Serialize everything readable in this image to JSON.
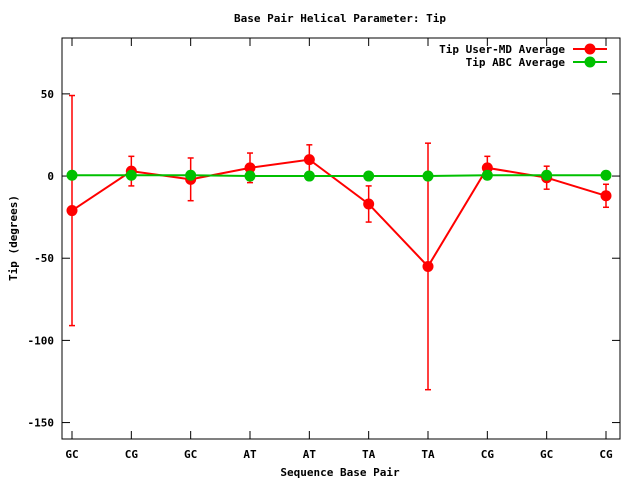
{
  "chart_data": {
    "type": "line",
    "title": "Base Pair Helical Parameter: Tip",
    "xlabel": "Sequence Base Pair",
    "ylabel": "Tip (degrees)",
    "categories": [
      "GC",
      "CG",
      "GC",
      "AT",
      "AT",
      "TA",
      "TA",
      "CG",
      "GC",
      "CG"
    ],
    "ylim": [
      -160,
      84
    ],
    "yticks": [
      50,
      0,
      -50,
      -100,
      -150
    ],
    "grid": false,
    "legend_position": "top-right",
    "series": [
      {
        "name": "Tip User-MD Average",
        "color": "#ff0000",
        "values": [
          -21,
          3,
          -2,
          5,
          10,
          -17,
          -55,
          5,
          -1,
          -12
        ],
        "error": [
          70,
          9,
          13,
          9,
          9,
          11,
          75,
          7,
          7,
          7
        ]
      },
      {
        "name": "Tip ABC Average",
        "color": "#00c000",
        "values": [
          0.5,
          0.5,
          0.5,
          0,
          0,
          0,
          0,
          0.5,
          0.5,
          0.5
        ]
      }
    ]
  }
}
